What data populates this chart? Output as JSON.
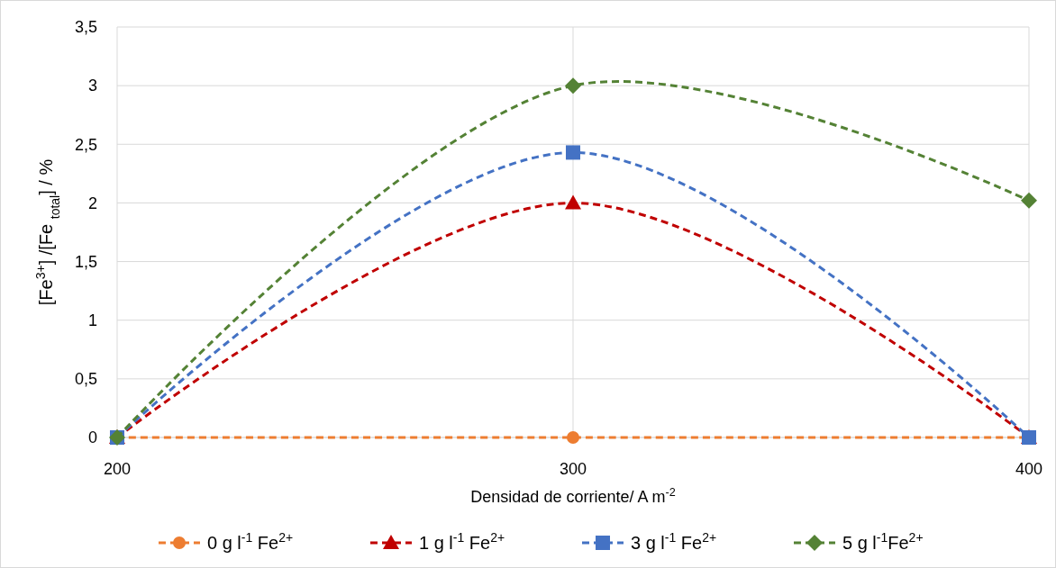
{
  "chart_data": {
    "type": "line",
    "xlabel": "Densidad de corriente/ A m$^{-2}$",
    "ylabel": "[Fe$^{3+}$] /[Fe $_{total}$]  / %",
    "x": [
      200,
      300,
      400
    ],
    "xlim": [
      200,
      400
    ],
    "xticks": [
      200,
      300,
      400
    ],
    "ylim": [
      0,
      3.5
    ],
    "yticks": [
      0,
      {
        "value": 0.5,
        "label": "0,5"
      },
      1,
      {
        "value": 1.5,
        "label": "1,5"
      },
      2,
      {
        "value": 2.5,
        "label": "2,5"
      },
      3,
      {
        "value": 3.5,
        "label": "3,5"
      }
    ],
    "grid": true,
    "legend": "bottom",
    "line_style": "dashed",
    "series": [
      {
        "name": "0 g l$^{-1}$  Fe$^{2+}$",
        "color": "#ed7d31",
        "marker": "circle",
        "values": [
          0,
          0,
          0
        ]
      },
      {
        "name": "1 g l$^{-1}$  Fe$^{2+}$",
        "color": "#c00000",
        "marker": "triangle",
        "values": [
          0,
          2,
          0
        ]
      },
      {
        "name": "3 g l$^{-1}$  Fe$^{2+}$",
        "color": "#4472c4",
        "marker": "square",
        "values": [
          0,
          2.43,
          0
        ]
      },
      {
        "name": "5 g l$^{-1}$Fe$^{2+}$",
        "color": "#548235",
        "marker": "diamond",
        "values": [
          0,
          3,
          2.02
        ]
      }
    ]
  }
}
